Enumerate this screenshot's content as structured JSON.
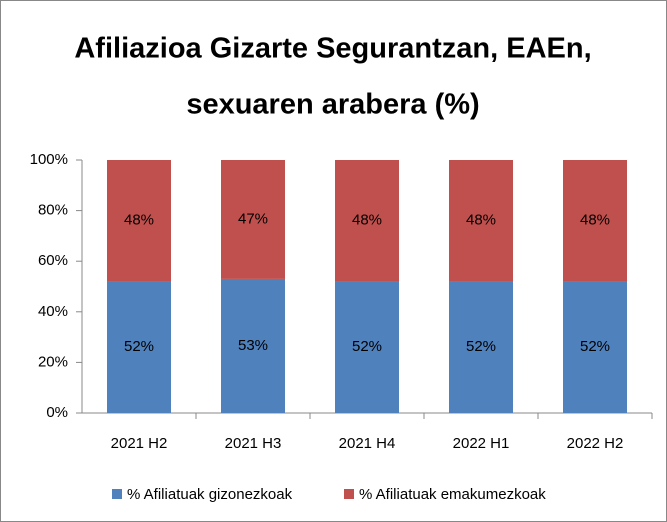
{
  "chart_data": {
    "type": "stacked_bar",
    "title": [
      "Afiliazioa Gizarte Segurantzan, EAEn,",
      "sexuaren arabera (%)"
    ],
    "categories": [
      "2021 H2",
      "2021 H3",
      "2021 H4",
      "2022 H1",
      "2022 H2"
    ],
    "series": [
      {
        "name": "% Afiliatuak gizonezkoak",
        "color": "#4f81bd",
        "values": [
          52,
          53,
          52,
          52,
          52
        ],
        "value_labels": [
          "52%",
          "53%",
          "52%",
          "52%",
          "52%"
        ]
      },
      {
        "name": "% Afiliatuak emakumezkoak",
        "color": "#c0504d",
        "values": [
          48,
          47,
          48,
          48,
          48
        ],
        "value_labels": [
          "48%",
          "47%",
          "48%",
          "48%",
          "48%"
        ]
      }
    ],
    "ylim": [
      0,
      100
    ],
    "yticks": [
      {
        "value": 0,
        "label": "0%"
      },
      {
        "value": 20,
        "label": "20%"
      },
      {
        "value": 40,
        "label": "40%"
      },
      {
        "value": 60,
        "label": "60%"
      },
      {
        "value": 80,
        "label": "80%"
      },
      {
        "value": 100,
        "label": "100%"
      }
    ],
    "grid": false,
    "legend": "bottom"
  }
}
